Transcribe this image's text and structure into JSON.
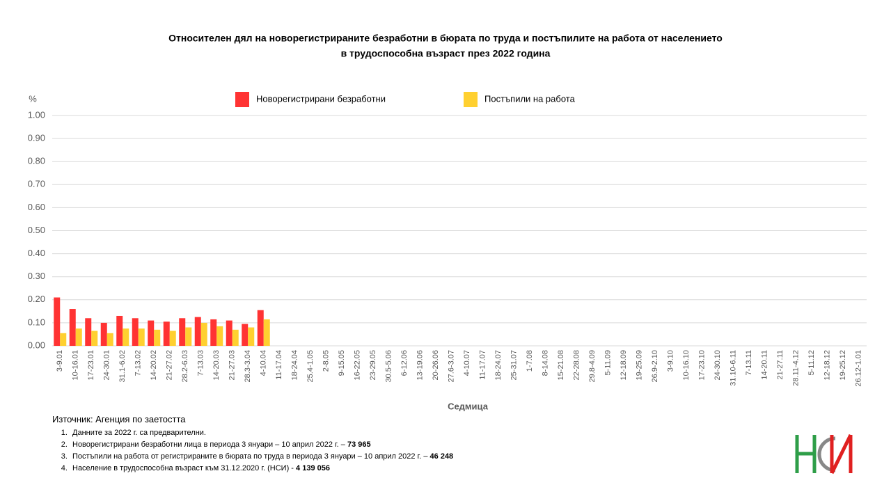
{
  "chart_data": {
    "type": "bar",
    "title": "Относителен дял на новорегистрираните безработни в бюрата по труда и постъпилите на работа от населението",
    "subtitle": "в трудоспособна възраст през 2022 година",
    "y_unit": "%",
    "xlabel": "Седмица",
    "categories": [
      "3-9.01",
      "10-16.01",
      "17-23.01",
      "24-30.01",
      "31.1-6.02",
      "7-13.02",
      "14-20.02",
      "21-27.02",
      "28.2-6.03",
      "7-13.03",
      "14-20.03",
      "21-27.03",
      "28.3-3.04",
      "4-10.04",
      "11-17.04",
      "18-24.04",
      "25.4-1.05",
      "2-8.05",
      "9-15.05",
      "16-22.05",
      "23-29.05",
      "30.5-5.06",
      "6-12.06",
      "13-19.06",
      "20-26.06",
      "27.6-3.07",
      "4-10.07",
      "11-17.07",
      "18-24.07",
      "25-31.07",
      "1-7.08",
      "8-14.08",
      "15-21.08",
      "22-28.08",
      "29.8-4.09",
      "5-11.09",
      "12-18.09",
      "19-25.09",
      "26.9-2.10",
      "3-9.10",
      "10-16.10",
      "17-23.10",
      "24-30.10",
      "31.10-6.11",
      "7-13.11",
      "14-20.11",
      "21-27.11",
      "28.11-4.12",
      "5-11.12",
      "12-18.12",
      "19-25.12",
      "26.12-1.01"
    ],
    "series": [
      {
        "name": "Новорегистрирани безработни",
        "color": "#ff3333",
        "values": [
          0.21,
          0.16,
          0.12,
          0.1,
          0.13,
          0.12,
          0.11,
          0.105,
          0.12,
          0.125,
          0.115,
          0.11,
          0.095,
          0.155,
          null,
          null,
          null,
          null,
          null,
          null,
          null,
          null,
          null,
          null,
          null,
          null,
          null,
          null,
          null,
          null,
          null,
          null,
          null,
          null,
          null,
          null,
          null,
          null,
          null,
          null,
          null,
          null,
          null,
          null,
          null,
          null,
          null,
          null,
          null,
          null,
          null,
          null
        ]
      },
      {
        "name": "Постъпили на работа",
        "color": "#ffd030",
        "values": [
          0.055,
          0.075,
          0.065,
          0.055,
          0.075,
          0.075,
          0.07,
          0.065,
          0.08,
          0.1,
          0.085,
          0.07,
          0.08,
          0.115,
          null,
          null,
          null,
          null,
          null,
          null,
          null,
          null,
          null,
          null,
          null,
          null,
          null,
          null,
          null,
          null,
          null,
          null,
          null,
          null,
          null,
          null,
          null,
          null,
          null,
          null,
          null,
          null,
          null,
          null,
          null,
          null,
          null,
          null,
          null,
          null,
          null,
          null
        ]
      }
    ],
    "ylim": [
      0,
      1
    ],
    "yticks": [
      {
        "value": 0,
        "label": "0.00"
      },
      {
        "value": 0.1,
        "label": "0.10"
      },
      {
        "value": 0.2,
        "label": "0.20"
      },
      {
        "value": 0.3,
        "label": "0.30"
      },
      {
        "value": 0.4,
        "label": "0.40"
      },
      {
        "value": 0.5,
        "label": "0.50"
      },
      {
        "value": 0.6,
        "label": "0.60"
      },
      {
        "value": 0.7,
        "label": "0.70"
      },
      {
        "value": 0.8,
        "label": "0.80"
      },
      {
        "value": 0.9,
        "label": "0.90"
      },
      {
        "value": 1,
        "label": "1.00"
      }
    ],
    "grid": true
  },
  "source": "Източник: Агенция по заетостта",
  "notes": [
    {
      "text": "Данните за 2022 г. са предварителни."
    },
    {
      "text": "Новорегистрирани безработни лица в периода 3 януари – 10 април 2022 г. –",
      "value": "73 965"
    },
    {
      "text": "Постъпили на работа от регистрираните в бюрата по труда в периода 3 януари – 10 април 2022 г. –",
      "value": "46 248"
    },
    {
      "text": "Население в трудоспособна възраст към 31.12.2020 г. (НСИ)  -",
      "value": "4 139 056"
    }
  ]
}
